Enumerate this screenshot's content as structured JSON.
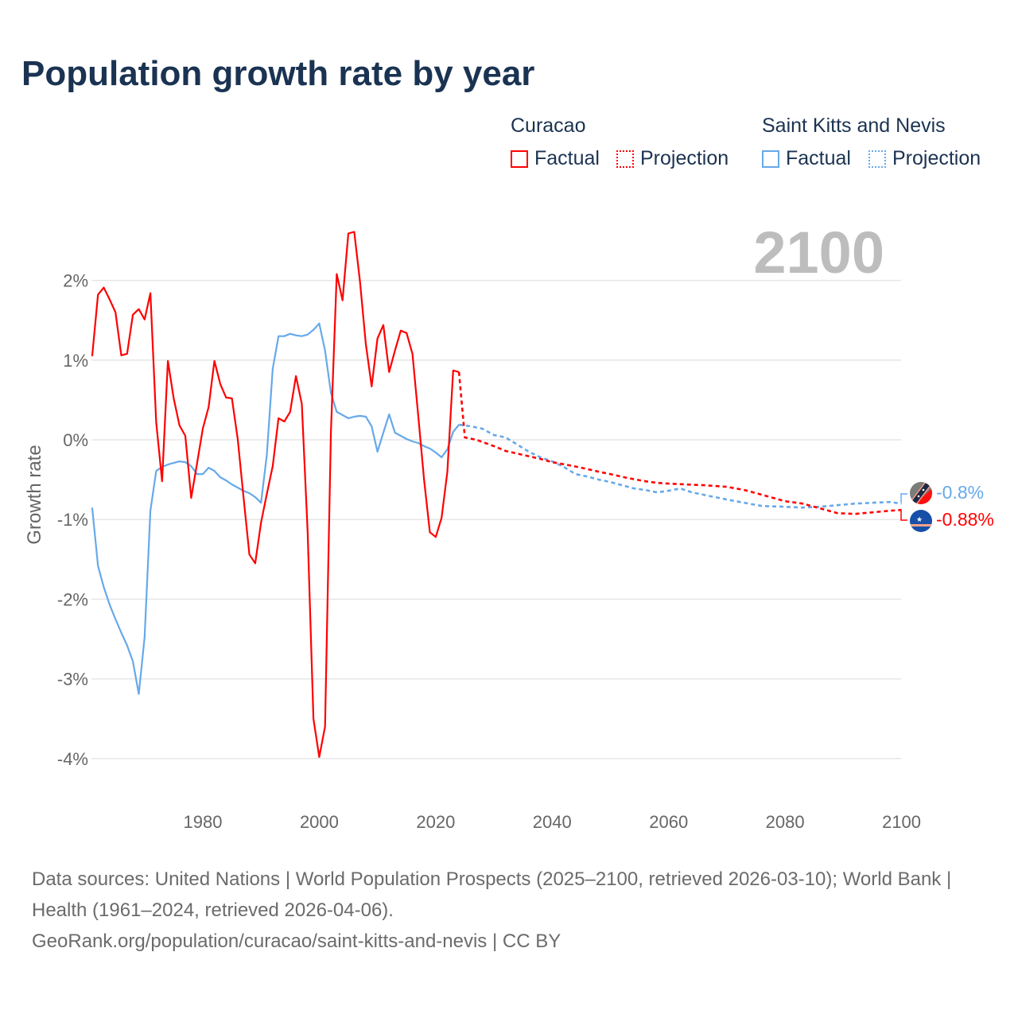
{
  "title": "Population growth rate by year",
  "legend": {
    "groups": [
      {
        "name": "Curacao",
        "factual": "Factual",
        "projection": "Projection",
        "color": "#ff0000"
      },
      {
        "name": "Saint Kitts and Nevis",
        "factual": "Factual",
        "projection": "Projection",
        "color": "#66a9ea"
      }
    ]
  },
  "year_display": "2100",
  "footer": {
    "line1": "Data sources: United Nations | World Population Prospects (2025–2100, retrieved 2026-03-10); World Bank | Health (1961–2024, retrieved 2026-04-06).",
    "line2": "GeoRank.org/population/curacao/saint-kitts-and-nevis | CC BY"
  },
  "chart_data": {
    "type": "line",
    "title": "Population growth rate by year",
    "xlabel": "",
    "ylabel": "Growth rate",
    "xlim": [
      1961,
      2100
    ],
    "ylim": [
      -4,
      2.6
    ],
    "x_ticks": [
      1980,
      2000,
      2020,
      2040,
      2060,
      2080,
      2100
    ],
    "x_tick_labels": [
      "1980",
      "2000",
      "2020",
      "2040",
      "2060",
      "2080",
      "2100"
    ],
    "y_ticks": [
      2,
      1,
      0,
      -1,
      -2,
      -3,
      -4
    ],
    "y_tick_labels": [
      "2%",
      "1%",
      "0%",
      "-1%",
      "-2%",
      "-3%",
      "-4%"
    ],
    "grid": true,
    "legend_position": "top-right",
    "end_labels": [
      {
        "series": "Saint Kitts and Nevis",
        "text": "-0.8%",
        "color": "#66a9ea"
      },
      {
        "series": "Curacao",
        "text": "-0.88%",
        "color": "#ff0000"
      }
    ],
    "series": [
      {
        "name": "Curacao",
        "color": "#ff0000",
        "factual": {
          "start_year": 1961,
          "values": [
            1.05,
            1.82,
            1.91,
            1.76,
            1.6,
            1.06,
            1.08,
            1.57,
            1.64,
            1.51,
            1.84,
            0.22,
            -0.52,
            0.99,
            0.52,
            0.18,
            0.05,
            -0.73,
            -0.3,
            0.14,
            0.41,
            0.99,
            0.7,
            0.53,
            0.52,
            0.01,
            -0.72,
            -1.44,
            -1.55,
            -1.04,
            -0.68,
            -0.33,
            0.27,
            0.23,
            0.35,
            0.8,
            0.45,
            -1.15,
            -3.5,
            -3.98,
            -3.6,
            0.1,
            2.08,
            1.75,
            2.59,
            2.61,
            1.98,
            1.2,
            0.67,
            1.27,
            1.44,
            0.85,
            1.12,
            1.37,
            1.34,
            1.08,
            0.3,
            -0.5,
            -1.16,
            -1.22,
            -0.98,
            -0.4,
            0.87,
            0.85
          ]
        },
        "projection": {
          "years": [
            2024,
            2025,
            2027,
            2030,
            2032,
            2035,
            2038,
            2040,
            2043,
            2045,
            2048,
            2050,
            2053,
            2056,
            2058,
            2060,
            2063,
            2066,
            2070,
            2073,
            2076,
            2080,
            2083,
            2086,
            2089,
            2092,
            2095,
            2098,
            2100
          ],
          "values": [
            0.85,
            0.03,
            0.0,
            -0.08,
            -0.14,
            -0.19,
            -0.24,
            -0.28,
            -0.32,
            -0.35,
            -0.4,
            -0.43,
            -0.48,
            -0.52,
            -0.54,
            -0.55,
            -0.56,
            -0.57,
            -0.59,
            -0.63,
            -0.69,
            -0.77,
            -0.8,
            -0.86,
            -0.92,
            -0.93,
            -0.91,
            -0.89,
            -0.88
          ]
        }
      },
      {
        "name": "Saint Kitts and Nevis",
        "color": "#66a9ea",
        "factual": {
          "start_year": 1961,
          "values": [
            -0.85,
            -1.58,
            -1.85,
            -2.07,
            -2.25,
            -2.42,
            -2.58,
            -2.78,
            -3.19,
            -2.48,
            -0.89,
            -0.39,
            -0.34,
            -0.31,
            -0.29,
            -0.27,
            -0.28,
            -0.33,
            -0.43,
            -0.43,
            -0.35,
            -0.39,
            -0.47,
            -0.51,
            -0.56,
            -0.6,
            -0.64,
            -0.67,
            -0.72,
            -0.79,
            -0.19,
            0.89,
            1.3,
            1.3,
            1.33,
            1.31,
            1.3,
            1.32,
            1.38,
            1.46,
            1.12,
            0.59,
            0.35,
            0.31,
            0.27,
            0.29,
            0.3,
            0.29,
            0.17,
            -0.15,
            0.09,
            0.32,
            0.09,
            0.05,
            0.01,
            -0.02,
            -0.04,
            -0.08,
            -0.11,
            -0.16,
            -0.22,
            -0.12,
            0.1,
            0.19
          ]
        },
        "projection": {
          "years": [
            2024,
            2026,
            2028,
            2030,
            2032,
            2034,
            2036,
            2038,
            2040,
            2042,
            2044,
            2046,
            2048,
            2050,
            2052,
            2054,
            2056,
            2058,
            2060,
            2062,
            2064,
            2066,
            2070,
            2073,
            2076,
            2080,
            2083,
            2086,
            2089,
            2092,
            2095,
            2098,
            2100
          ],
          "values": [
            0.19,
            0.17,
            0.14,
            0.06,
            0.03,
            -0.06,
            -0.15,
            -0.22,
            -0.27,
            -0.34,
            -0.43,
            -0.46,
            -0.5,
            -0.53,
            -0.57,
            -0.61,
            -0.63,
            -0.66,
            -0.64,
            -0.61,
            -0.66,
            -0.69,
            -0.75,
            -0.79,
            -0.83,
            -0.84,
            -0.85,
            -0.84,
            -0.82,
            -0.8,
            -0.79,
            -0.78,
            -0.8
          ]
        }
      }
    ]
  }
}
